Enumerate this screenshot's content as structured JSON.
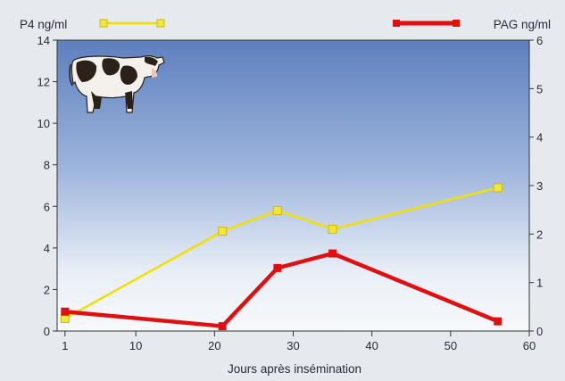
{
  "chart_data": {
    "type": "line",
    "xlabel": "Jours après insémination",
    "x_ticks": [
      "1",
      "10",
      "20",
      "30",
      "40",
      "50",
      "60"
    ],
    "xlim": [
      0,
      60
    ],
    "y_left": {
      "label": "P4 ng/ml",
      "lim": [
        0,
        14
      ],
      "ticks": [
        "0",
        "2",
        "4",
        "6",
        "8",
        "10",
        "12",
        "14"
      ]
    },
    "y_right": {
      "label": "PAG ng/ml",
      "lim": [
        0,
        6
      ],
      "ticks": [
        "0",
        "1",
        "2",
        "3",
        "4",
        "5",
        "6"
      ]
    },
    "series": [
      {
        "name": "P4 ng/ml",
        "axis": "left",
        "color": "#f2e000",
        "marker_fill": "#f0e640",
        "x": [
          1,
          21,
          28,
          35,
          56
        ],
        "y": [
          0.6,
          4.8,
          5.8,
          4.9,
          6.9
        ]
      },
      {
        "name": "PAG ng/ml",
        "axis": "right",
        "color": "#e01010",
        "x": [
          1,
          21,
          28,
          35,
          56
        ],
        "y": [
          0.4,
          0.1,
          1.3,
          1.6,
          0.2
        ]
      }
    ],
    "legend_position": "top",
    "grid": false,
    "background": "blue-to-white vertical gradient",
    "illustration": "cow-icon"
  }
}
